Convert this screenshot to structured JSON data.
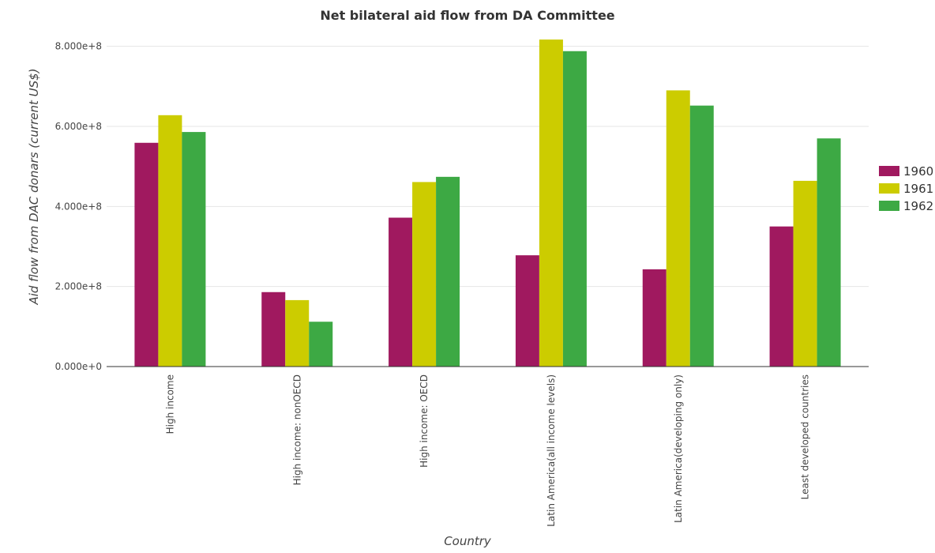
{
  "chart_data": {
    "type": "bar",
    "title": "Net bilateral aid flow from DA Committee",
    "xlabel": "Country",
    "ylabel": "Aid flow from DAC donars (current US$)",
    "categories": [
      "High income",
      "High income: nonOECD",
      "High income: OECD",
      "Latin America(all income levels)",
      "Latin America(developing only)",
      "Least developed countries"
    ],
    "series": [
      {
        "name": "1960",
        "color": "#a0195f",
        "values": [
          559000000,
          186000000,
          372000000,
          278000000,
          243000000,
          350000000
        ]
      },
      {
        "name": "1961",
        "color": "#cccc00",
        "values": [
          628000000,
          166000000,
          461000000,
          817000000,
          690000000,
          464000000
        ]
      },
      {
        "name": "1962",
        "color": "#3da944",
        "values": [
          586000000,
          112000000,
          474000000,
          788000000,
          652000000,
          570000000
        ]
      }
    ],
    "ylim": [
      0,
      900000000
    ],
    "yticks": [
      0,
      200000000,
      400000000,
      600000000,
      800000000
    ],
    "ytick_labels": [
      "0.000e+0",
      "2.000e+8",
      "4.000e+8",
      "6.000e+8",
      "8.000e+8"
    ],
    "grid": true,
    "legend_position": "right"
  }
}
